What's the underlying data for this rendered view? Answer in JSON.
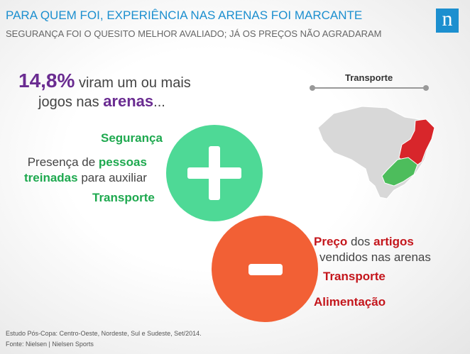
{
  "header": {
    "title": "PARA QUEM FOI, EXPERIÊNCIA NAS ARENAS FOI MARCANTE",
    "subtitle": "SEGURANÇA FOI O QUESITO MELHOR AVALIADO; JÁ OS PREÇOS NÃO AGRADARAM",
    "logo": "n"
  },
  "stat": {
    "value": "14,8%",
    "text": "viram um ou mais",
    "line2": "jogos nas",
    "highlight": "arenas",
    "tail": "..."
  },
  "map": {
    "label": "Transporte"
  },
  "positives": {
    "item1": "Segurança",
    "item2": {
      "start": "Presença de",
      "bold1": "pessoas",
      "bold2": "treinadas",
      "end": "para auxiliar"
    },
    "item3": "Transporte"
  },
  "negatives": {
    "item1": {
      "bold1": "Preço",
      "middle": "dos",
      "bold2": "artigos",
      "line2": "vendidos nas arenas"
    },
    "item2": "Transporte",
    "item3": "Alimentação"
  },
  "footer": {
    "study": "Estudo Pós-Copa: Centro-Oeste, Nordeste, Sul e Sudeste, Set/2014.",
    "source": "Fonte: Nielsen |  Nielsen Sports"
  }
}
